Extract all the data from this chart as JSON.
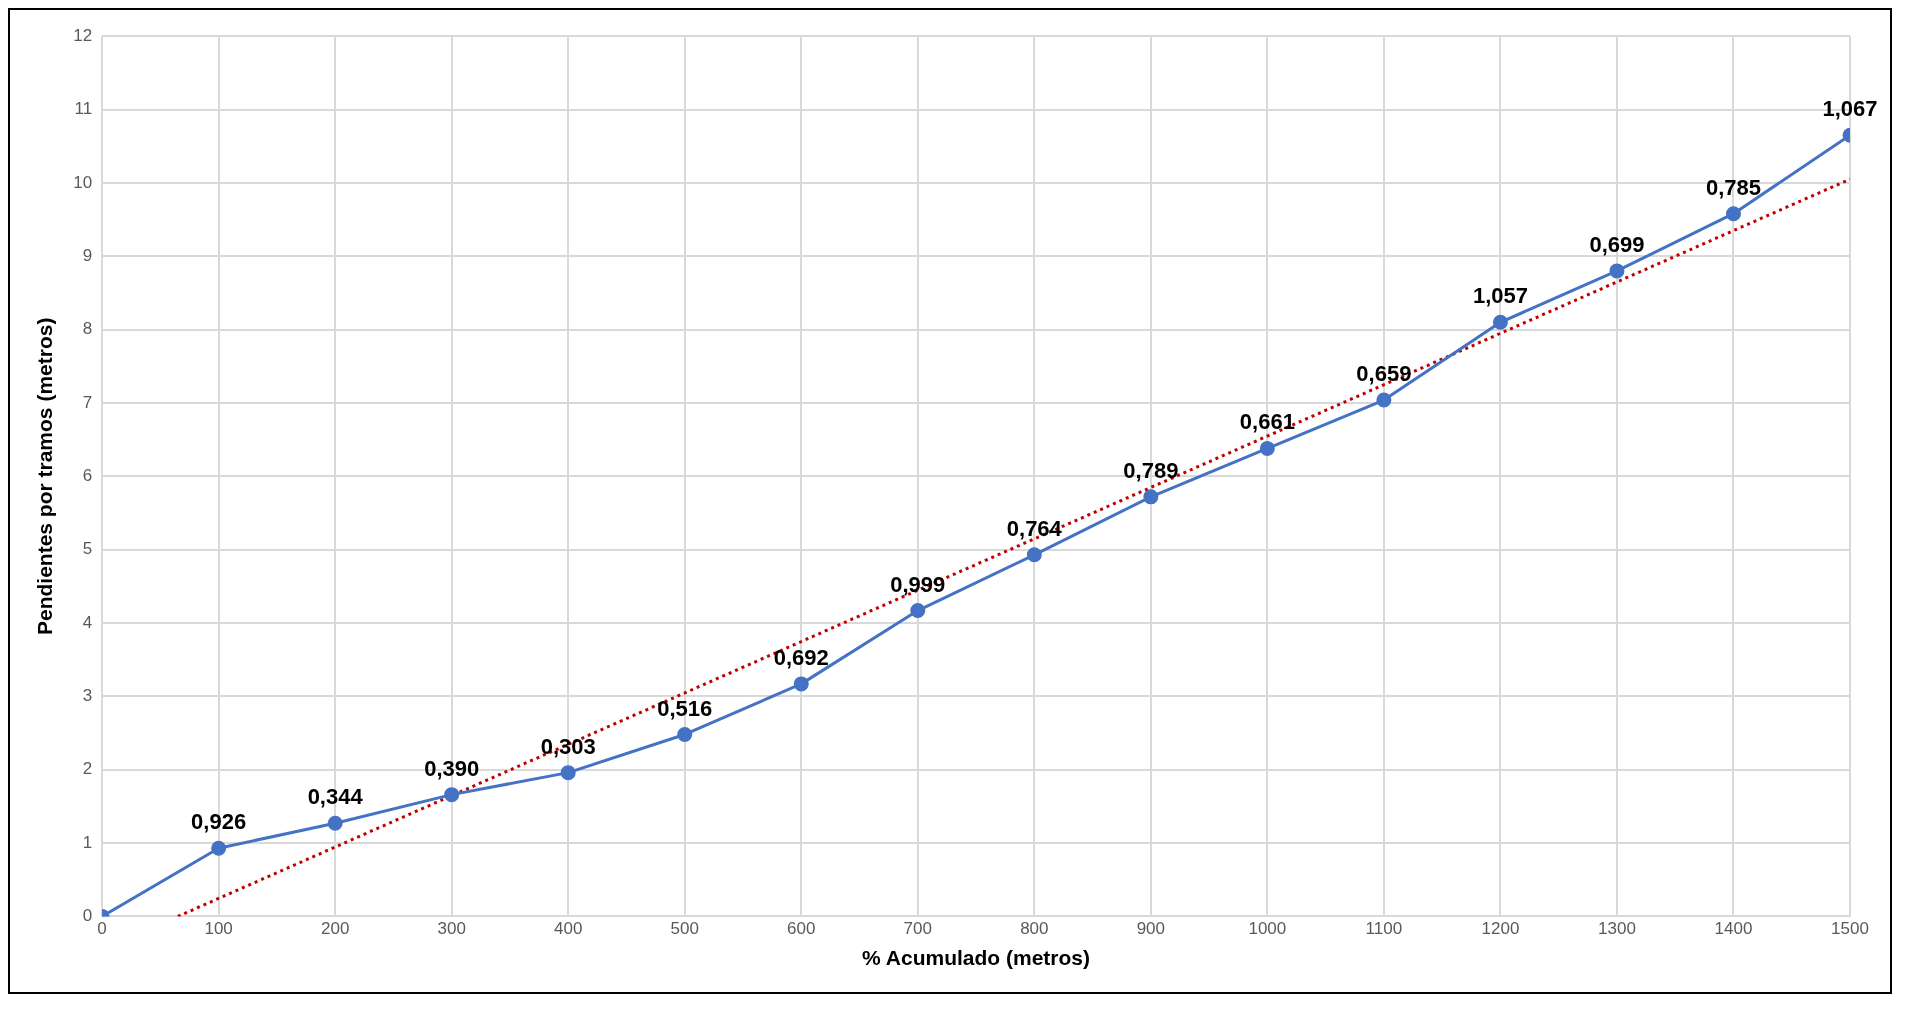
{
  "chart_data": {
    "type": "line",
    "xlabel": "% Acumulado (metros)",
    "ylabel": "Pendientes por tramos (metros)",
    "x": [
      0,
      100,
      200,
      300,
      400,
      500,
      600,
      700,
      800,
      900,
      1000,
      1100,
      1200,
      1300,
      1400,
      1500
    ],
    "series": [
      {
        "color": "#4472c4",
        "marker": "circle",
        "line_style": "solid",
        "values": [
          0,
          0.93,
          1.27,
          1.66,
          1.96,
          2.48,
          3.17,
          4.17,
          4.93,
          5.72,
          6.38,
          7.04,
          8.1,
          8.8,
          9.58,
          10.65
        ]
      },
      {
        "type": "line",
        "color": "#c00000",
        "marker": "none",
        "line_style": "dotted",
        "x": [
          65,
          1500
        ],
        "values": [
          0,
          10.05
        ]
      }
    ],
    "annotations": [
      {
        "text": "0,926",
        "x": 100,
        "y": 0.93
      },
      {
        "text": "0,344",
        "x": 200,
        "y": 1.27
      },
      {
        "text": "0,390",
        "x": 300,
        "y": 1.66
      },
      {
        "text": "0,303",
        "x": 400,
        "y": 1.96
      },
      {
        "text": "0,516",
        "x": 500,
        "y": 2.48
      },
      {
        "text": "0,692",
        "x": 600,
        "y": 3.17
      },
      {
        "text": "0,999",
        "x": 700,
        "y": 4.17
      },
      {
        "text": "0,764",
        "x": 800,
        "y": 4.93
      },
      {
        "text": "0,789",
        "x": 900,
        "y": 5.72
      },
      {
        "text": "0,661",
        "x": 1000,
        "y": 6.38
      },
      {
        "text": "0,659",
        "x": 1100,
        "y": 7.04
      },
      {
        "text": "1,057",
        "x": 1200,
        "y": 8.1
      },
      {
        "text": "0,699",
        "x": 1300,
        "y": 8.8
      },
      {
        "text": "0,785",
        "x": 1400,
        "y": 9.58
      },
      {
        "text": "1,067",
        "x": 1500,
        "y": 10.65
      }
    ],
    "xlim": [
      0,
      1500
    ],
    "xticks": [
      0,
      100,
      200,
      300,
      400,
      500,
      600,
      700,
      800,
      900,
      1000,
      1100,
      1200,
      1300,
      1400,
      1500
    ],
    "ylim": [
      0,
      12
    ],
    "yticks": [
      0,
      1,
      2,
      3,
      4,
      5,
      6,
      7,
      8,
      9,
      10,
      11,
      12
    ],
    "grid": true,
    "legend": false
  }
}
